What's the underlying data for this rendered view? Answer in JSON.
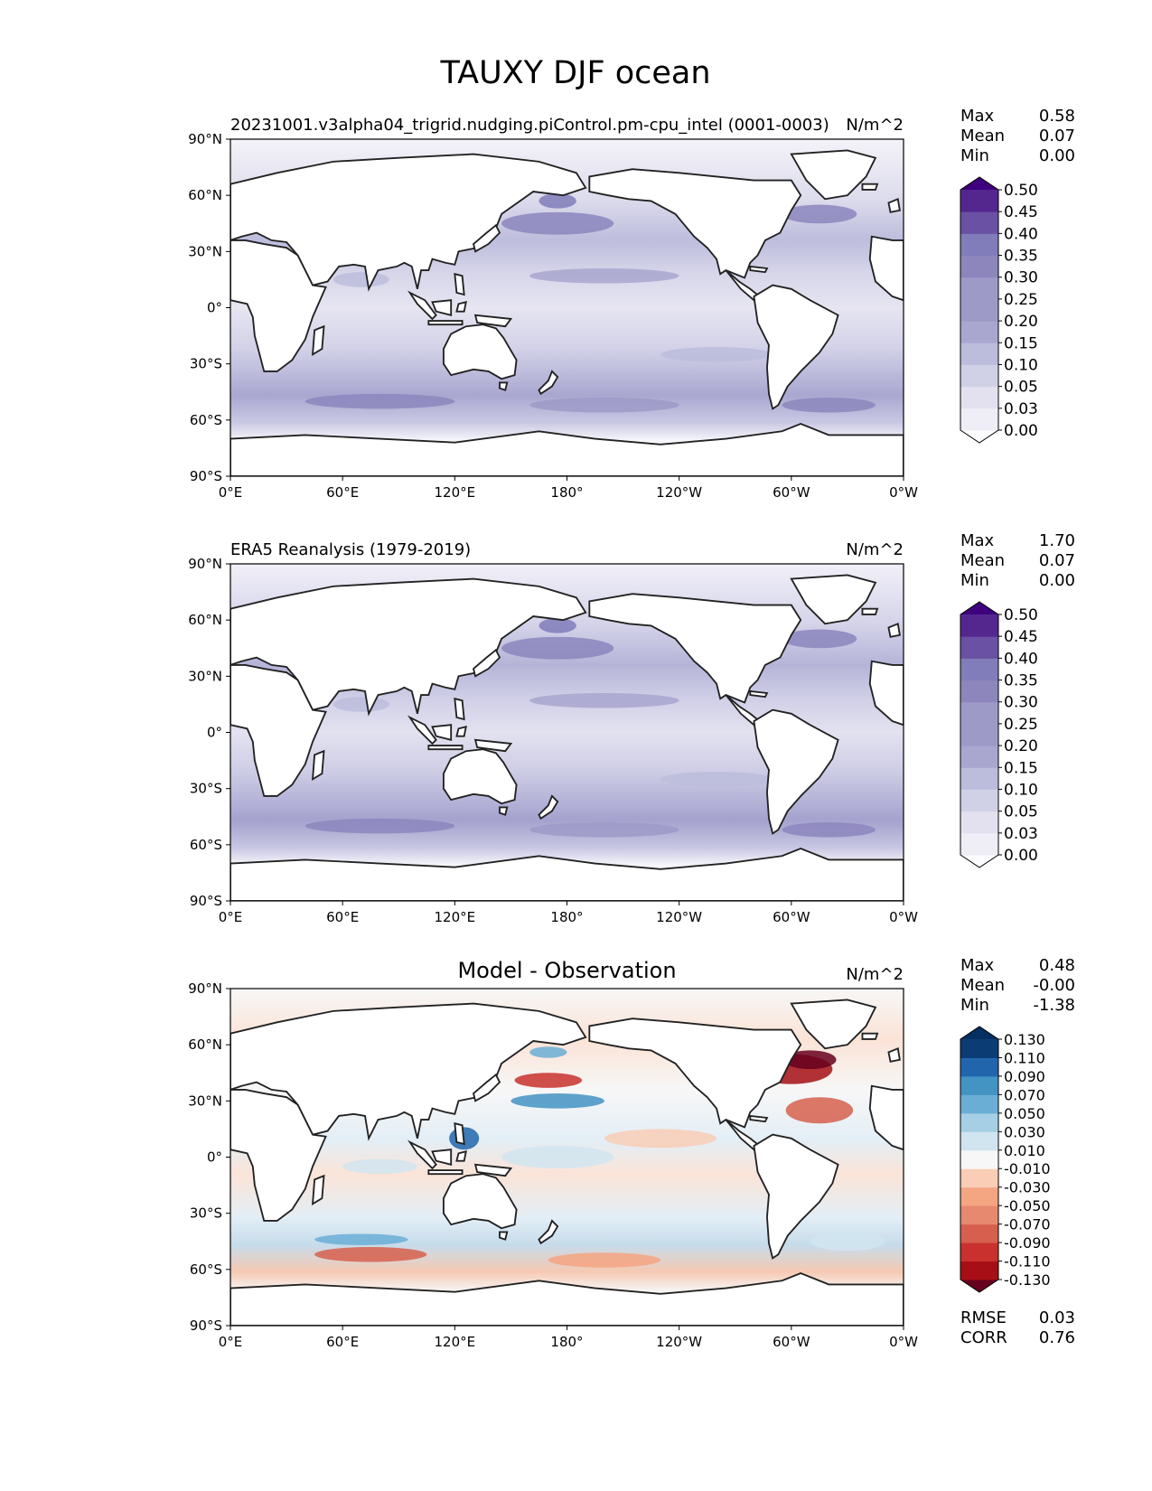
{
  "title": "TAUXY DJF ocean",
  "lon_ticks": [
    "0°E",
    "60°E",
    "120°E",
    "180°",
    "120°W",
    "60°W",
    "0°W"
  ],
  "lat_ticks": [
    "90°N",
    "60°N",
    "30°N",
    "0°",
    "30°S",
    "60°S",
    "90°S"
  ],
  "colors": {
    "land": "#ffffff",
    "coast": "#222222",
    "purple_ramp": [
      "#fcfbfd",
      "#efedf5",
      "#e3e1ef",
      "#d0d1e6",
      "#bcbddc",
      "#a9a6cf",
      "#9e9ac8",
      "#8c86bd",
      "#807dba",
      "#6a51a3",
      "#54278f",
      "#3f007d"
    ],
    "diverging_ramp": [
      "#67001f",
      "#a50f15",
      "#c8312d",
      "#d6604d",
      "#e6896f",
      "#f4a582",
      "#f9cdb6",
      "#f7f7f7",
      "#d1e5f0",
      "#a6cfe5",
      "#6aaed6",
      "#4393c3",
      "#2166ac",
      "#0b3c73",
      "#053061"
    ]
  },
  "panels": [
    {
      "left_title": "20231001.v3alpha04_trigrid.nudging.piControl.pm-cpu_intel (0001-0003)",
      "center_title": "",
      "units": "N/m^2",
      "stats": [
        {
          "label": "Max",
          "value": "0.58"
        },
        {
          "label": "Mean",
          "value": "0.07"
        },
        {
          "label": "Min",
          "value": "0.00"
        }
      ],
      "colorbar": [
        "0.00",
        "0.03",
        "0.05",
        "0.10",
        "0.15",
        "0.20",
        "0.25",
        "0.30",
        "0.35",
        "0.40",
        "0.45",
        "0.50"
      ],
      "cmap": "purple",
      "metrics": []
    },
    {
      "left_title": "ERA5 Reanalysis (1979-2019)",
      "center_title": "",
      "units": "N/m^2",
      "stats": [
        {
          "label": "Max",
          "value": "1.70"
        },
        {
          "label": "Mean",
          "value": "0.07"
        },
        {
          "label": "Min",
          "value": "0.00"
        }
      ],
      "colorbar": [
        "0.00",
        "0.03",
        "0.05",
        "0.10",
        "0.15",
        "0.20",
        "0.25",
        "0.30",
        "0.35",
        "0.40",
        "0.45",
        "0.50"
      ],
      "cmap": "purple",
      "metrics": []
    },
    {
      "left_title": "",
      "center_title": "Model - Observation",
      "units": "N/m^2",
      "stats": [
        {
          "label": "Max",
          "value": "0.48"
        },
        {
          "label": "Mean",
          "value": "-0.00"
        },
        {
          "label": "Min",
          "value": "-1.38"
        }
      ],
      "colorbar": [
        "-0.130",
        "-0.110",
        "-0.090",
        "-0.070",
        "-0.050",
        "-0.030",
        "-0.010",
        "0.010",
        "0.030",
        "0.050",
        "0.070",
        "0.090",
        "0.110",
        "0.130"
      ],
      "cmap": "diverging",
      "metrics": [
        {
          "label": "RMSE",
          "value": "0.03"
        },
        {
          "label": "CORR",
          "value": "0.76"
        }
      ]
    }
  ]
}
